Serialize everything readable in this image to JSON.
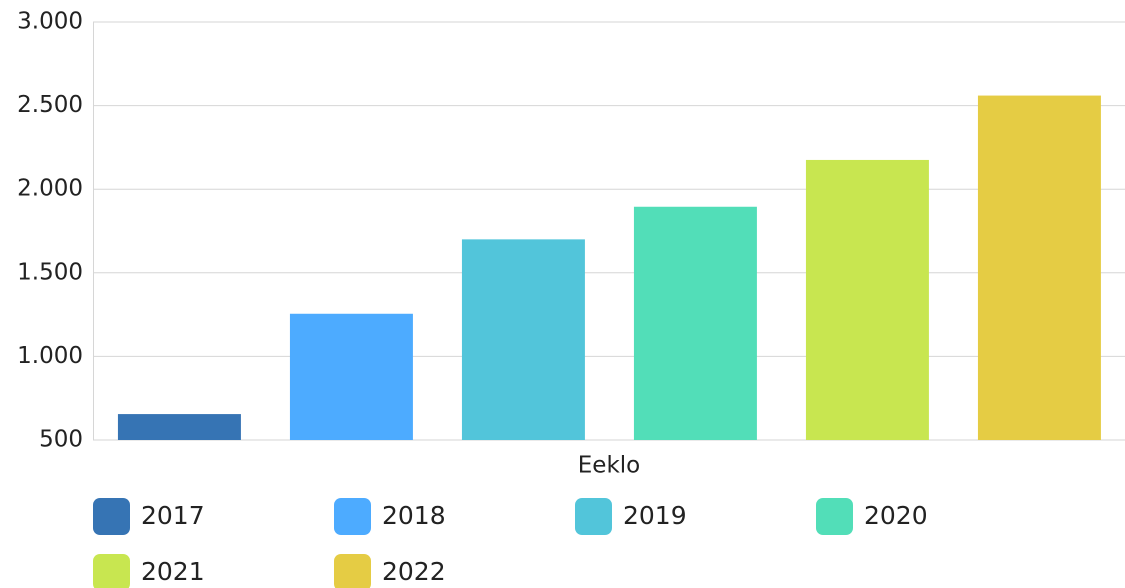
{
  "chart_data": {
    "type": "bar",
    "categories": [
      "Eeklo"
    ],
    "series": [
      {
        "name": "2017",
        "color": "#3674b4",
        "values": [
          655
        ]
      },
      {
        "name": "2018",
        "color": "#4dabff",
        "values": [
          1255
        ]
      },
      {
        "name": "2019",
        "color": "#52c5da",
        "values": [
          1700
        ]
      },
      {
        "name": "2020",
        "color": "#52deb8",
        "values": [
          1895
        ]
      },
      {
        "name": "2021",
        "color": "#c8e650",
        "values": [
          2175
        ]
      },
      {
        "name": "2022",
        "color": "#e5cc44",
        "values": [
          2560
        ]
      }
    ],
    "ylim": [
      500,
      3000
    ],
    "yticks": [
      500,
      {
        "value": 1000,
        "label": "1.000"
      },
      {
        "value": 1500,
        "label": "1.500"
      },
      {
        "value": 2000,
        "label": "2.000"
      },
      {
        "value": 2500,
        "label": "2.500"
      },
      {
        "value": 3000,
        "label": "3.000"
      }
    ],
    "grid": true
  }
}
